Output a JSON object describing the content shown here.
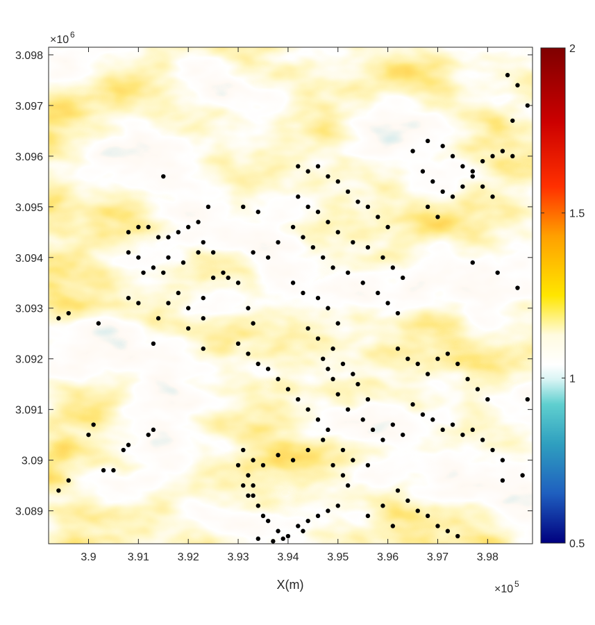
{
  "chart_data": {
    "type": "heatmap",
    "title": "",
    "xlabel": "X(m)",
    "ylabel": "",
    "x_exponent_label": "×10",
    "x_exponent_power": "5",
    "y_exponent_label": "×10",
    "y_exponent_power": "6",
    "xlim": [
      389200,
      398900
    ],
    "ylim": [
      3088350,
      3098150
    ],
    "xticks": [
      390000,
      391000,
      392000,
      393000,
      394000,
      395000,
      396000,
      397000,
      398000
    ],
    "xtick_labels": [
      "3.9",
      "3.91",
      "3.92",
      "3.93",
      "3.94",
      "3.95",
      "3.96",
      "3.97",
      "3.98"
    ],
    "yticks": [
      3089000,
      3090000,
      3091000,
      3092000,
      3093000,
      3094000,
      3095000,
      3096000,
      3097000,
      3098000
    ],
    "ytick_labels": [
      "3.089",
      "3.09",
      "3.091",
      "3.092",
      "3.093",
      "3.094",
      "3.095",
      "3.096",
      "3.097",
      "3.098"
    ],
    "grid": false,
    "colorbar": {
      "min": 0.5,
      "max": 2,
      "ticks": [
        0.5,
        1,
        1.5,
        2
      ],
      "tick_labels": [
        "0.5",
        "1",
        "1.5",
        "2"
      ],
      "colormap": "blue-cyan-white-yellow-red-darkred (jet-like, white near 1)"
    },
    "series": [
      {
        "type": "scatter",
        "marker_color": "#000000",
        "points": [
          [
            389400,
            3089400
          ],
          [
            389600,
            3089600
          ],
          [
            390000,
            3090500
          ],
          [
            390100,
            3090700
          ],
          [
            390300,
            3089800
          ],
          [
            390500,
            3089800
          ],
          [
            390700,
            3090200
          ],
          [
            390800,
            3090300
          ],
          [
            391200,
            3090500
          ],
          [
            391300,
            3090600
          ],
          [
            390200,
            3092700
          ],
          [
            390800,
            3093200
          ],
          [
            391000,
            3093100
          ],
          [
            391400,
            3092800
          ],
          [
            391600,
            3093100
          ],
          [
            391800,
            3093300
          ],
          [
            392000,
            3093000
          ],
          [
            392300,
            3093200
          ],
          [
            392500,
            3093600
          ],
          [
            392800,
            3093600
          ],
          [
            390800,
            3094100
          ],
          [
            391000,
            3094000
          ],
          [
            391100,
            3093700
          ],
          [
            391300,
            3093800
          ],
          [
            391500,
            3093700
          ],
          [
            391600,
            3094000
          ],
          [
            391900,
            3093900
          ],
          [
            392200,
            3094100
          ],
          [
            392300,
            3094300
          ],
          [
            392500,
            3094100
          ],
          [
            390800,
            3094500
          ],
          [
            391000,
            3094600
          ],
          [
            391200,
            3094600
          ],
          [
            391400,
            3094400
          ],
          [
            391600,
            3094400
          ],
          [
            391800,
            3094500
          ],
          [
            392000,
            3094600
          ],
          [
            392200,
            3094700
          ],
          [
            391500,
            3095600
          ],
          [
            392400,
            3095000
          ],
          [
            389400,
            3092800
          ],
          [
            389600,
            3092900
          ],
          [
            391300,
            3092300
          ],
          [
            392000,
            3092600
          ],
          [
            392300,
            3092800
          ],
          [
            392700,
            3093700
          ],
          [
            393000,
            3093500
          ],
          [
            393200,
            3093000
          ],
          [
            393300,
            3092700
          ],
          [
            392300,
            3092200
          ],
          [
            393100,
            3095000
          ],
          [
            393400,
            3094900
          ],
          [
            393300,
            3094100
          ],
          [
            393600,
            3094000
          ],
          [
            393800,
            3094300
          ],
          [
            394100,
            3093500
          ],
          [
            394300,
            3093300
          ],
          [
            394600,
            3093200
          ],
          [
            394800,
            3093000
          ],
          [
            395000,
            3092700
          ],
          [
            394400,
            3092600
          ],
          [
            394600,
            3092400
          ],
          [
            394900,
            3092200
          ],
          [
            394700,
            3092000
          ],
          [
            395100,
            3091900
          ],
          [
            394800,
            3091800
          ],
          [
            395300,
            3091700
          ],
          [
            394900,
            3091600
          ],
          [
            395400,
            3091500
          ],
          [
            395000,
            3091300
          ],
          [
            395600,
            3091200
          ],
          [
            395200,
            3091000
          ],
          [
            395500,
            3090800
          ],
          [
            395700,
            3090600
          ],
          [
            395900,
            3090400
          ],
          [
            396100,
            3090700
          ],
          [
            396300,
            3090500
          ],
          [
            395100,
            3090200
          ],
          [
            395300,
            3090000
          ],
          [
            395600,
            3089900
          ],
          [
            393000,
            3092300
          ],
          [
            393200,
            3092100
          ],
          [
            393400,
            3091900
          ],
          [
            393600,
            3091800
          ],
          [
            393800,
            3091600
          ],
          [
            394000,
            3091400
          ],
          [
            394200,
            3091200
          ],
          [
            394400,
            3091000
          ],
          [
            394600,
            3090800
          ],
          [
            394800,
            3090600
          ],
          [
            393100,
            3090200
          ],
          [
            393300,
            3090000
          ],
          [
            393500,
            3089900
          ],
          [
            393800,
            3090100
          ],
          [
            394100,
            3090000
          ],
          [
            394400,
            3090200
          ],
          [
            394700,
            3090400
          ],
          [
            394900,
            3089900
          ],
          [
            395100,
            3089700
          ],
          [
            395200,
            3089500
          ],
          [
            393000,
            3089900
          ],
          [
            393200,
            3089700
          ],
          [
            393100,
            3089500
          ],
          [
            393300,
            3089300
          ],
          [
            393400,
            3089100
          ],
          [
            393500,
            3088900
          ],
          [
            393600,
            3088800
          ],
          [
            393800,
            3088600
          ],
          [
            394000,
            3088500
          ],
          [
            394200,
            3088700
          ],
          [
            394400,
            3088800
          ],
          [
            394600,
            3088900
          ],
          [
            394800,
            3089000
          ],
          [
            395000,
            3089100
          ],
          [
            393400,
            3088450
          ],
          [
            393700,
            3088400
          ],
          [
            393900,
            3088450
          ],
          [
            394300,
            3088600
          ],
          [
            393200,
            3089300
          ],
          [
            393300,
            3089500
          ],
          [
            394200,
            3095800
          ],
          [
            394400,
            3095700
          ],
          [
            394600,
            3095800
          ],
          [
            394800,
            3095600
          ],
          [
            395000,
            3095500
          ],
          [
            395200,
            3095300
          ],
          [
            395400,
            3095100
          ],
          [
            395600,
            3095000
          ],
          [
            395800,
            3094800
          ],
          [
            396000,
            3094600
          ],
          [
            394200,
            3095200
          ],
          [
            394400,
            3095000
          ],
          [
            394600,
            3094900
          ],
          [
            394800,
            3094700
          ],
          [
            395000,
            3094500
          ],
          [
            395300,
            3094300
          ],
          [
            395600,
            3094200
          ],
          [
            395900,
            3094000
          ],
          [
            396100,
            3093800
          ],
          [
            396300,
            3093600
          ],
          [
            394100,
            3094600
          ],
          [
            394300,
            3094400
          ],
          [
            394500,
            3094200
          ],
          [
            394700,
            3094000
          ],
          [
            394900,
            3093800
          ],
          [
            395200,
            3093700
          ],
          [
            395500,
            3093500
          ],
          [
            395800,
            3093300
          ],
          [
            396000,
            3093100
          ],
          [
            396200,
            3092900
          ],
          [
            396500,
            3096100
          ],
          [
            396800,
            3096300
          ],
          [
            397100,
            3096200
          ],
          [
            397300,
            3096000
          ],
          [
            397500,
            3095800
          ],
          [
            397700,
            3095700
          ],
          [
            397900,
            3095900
          ],
          [
            398100,
            3096000
          ],
          [
            398300,
            3096100
          ],
          [
            398500,
            3096000
          ],
          [
            396700,
            3095700
          ],
          [
            396900,
            3095500
          ],
          [
            397100,
            3095300
          ],
          [
            397300,
            3095200
          ],
          [
            397500,
            3095400
          ],
          [
            397700,
            3095600
          ],
          [
            397900,
            3095400
          ],
          [
            398100,
            3095200
          ],
          [
            396800,
            3095000
          ],
          [
            397000,
            3094800
          ],
          [
            396200,
            3092200
          ],
          [
            396400,
            3092000
          ],
          [
            396600,
            3091900
          ],
          [
            396800,
            3091700
          ],
          [
            397000,
            3092000
          ],
          [
            397200,
            3092100
          ],
          [
            397400,
            3091900
          ],
          [
            397600,
            3091600
          ],
          [
            397800,
            3091400
          ],
          [
            398000,
            3091200
          ],
          [
            396500,
            3091100
          ],
          [
            396700,
            3090900
          ],
          [
            396900,
            3090800
          ],
          [
            397100,
            3090600
          ],
          [
            397300,
            3090700
          ],
          [
            397500,
            3090500
          ],
          [
            397700,
            3090600
          ],
          [
            397900,
            3090400
          ],
          [
            398100,
            3090200
          ],
          [
            398300,
            3090000
          ],
          [
            396200,
            3089400
          ],
          [
            396400,
            3089200
          ],
          [
            396600,
            3089000
          ],
          [
            396800,
            3088900
          ],
          [
            397000,
            3088700
          ],
          [
            397200,
            3088600
          ],
          [
            397400,
            3088500
          ],
          [
            395600,
            3088900
          ],
          [
            395900,
            3089100
          ],
          [
            396100,
            3088700
          ],
          [
            398400,
            3097600
          ],
          [
            398600,
            3097400
          ],
          [
            398800,
            3097000
          ],
          [
            398500,
            3096700
          ],
          [
            397700,
            3093900
          ],
          [
            398200,
            3093700
          ],
          [
            398600,
            3093400
          ],
          [
            398800,
            3091200
          ],
          [
            398700,
            3089700
          ],
          [
            398300,
            3089600
          ]
        ]
      }
    ]
  }
}
